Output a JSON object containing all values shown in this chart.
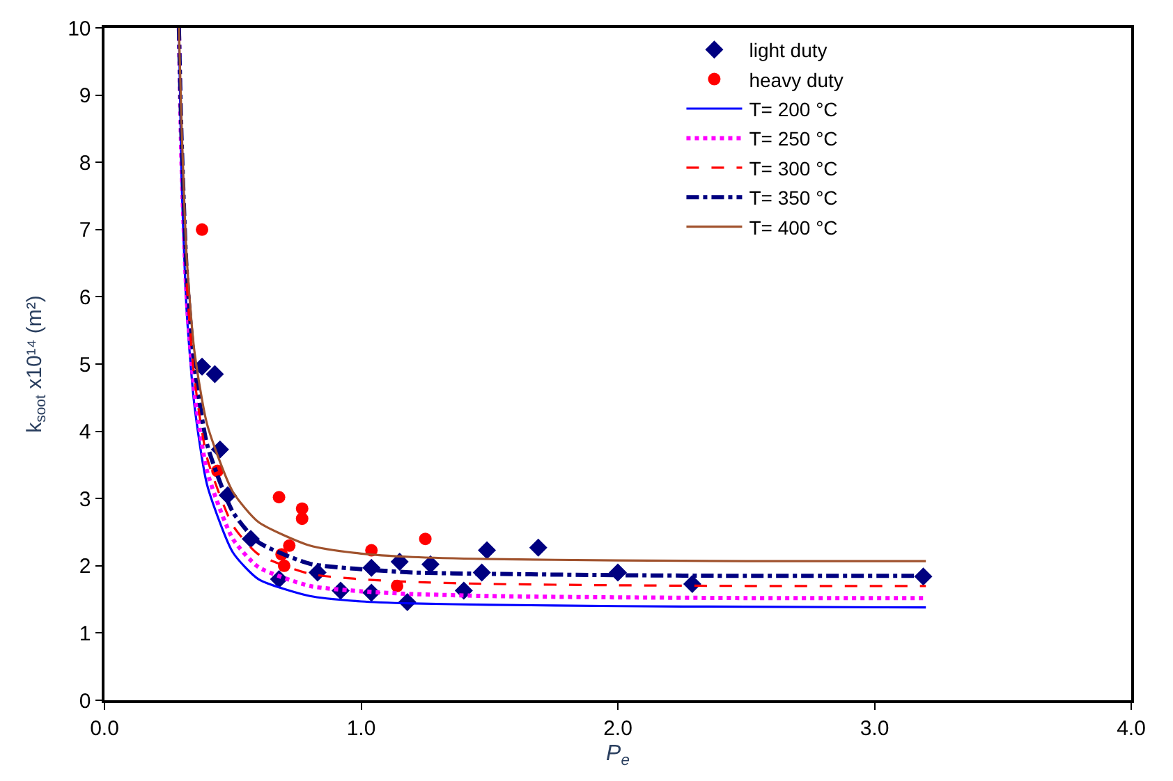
{
  "chart_data": {
    "type": "scatter",
    "xlabel": "P$_{e}$",
    "ylabel": "k$_{soot}$ x10¹⁴ (m²)",
    "xlim": [
      0,
      4
    ],
    "xticks": [
      {
        "value": 0,
        "label": "0.0"
      },
      {
        "value": 1,
        "label": "1.0"
      },
      {
        "value": 2,
        "label": "2.0"
      },
      {
        "value": 3,
        "label": "3.0"
      },
      {
        "value": 4,
        "label": "4.0"
      }
    ],
    "ylim": [
      0,
      10
    ],
    "yticks": [
      0,
      1,
      2,
      3,
      4,
      5,
      6,
      7,
      8,
      9,
      10
    ],
    "legend": "top right",
    "series": [
      {
        "name": "light duty",
        "marker": "diamond",
        "color": "#000080",
        "x": [
          0.38,
          0.43,
          0.45,
          0.48,
          0.57,
          0.68,
          0.83,
          0.92,
          1.04,
          1.04,
          1.15,
          1.18,
          1.27,
          1.4,
          1.47,
          1.49,
          1.69,
          2.0,
          2.29,
          3.19
        ],
        "values": [
          4.96,
          4.85,
          3.73,
          3.05,
          2.4,
          1.8,
          1.9,
          1.63,
          1.97,
          1.6,
          2.06,
          1.46,
          2.02,
          1.63,
          1.9,
          2.23,
          2.27,
          1.9,
          1.73,
          1.84
        ]
      },
      {
        "name": "heavy duty",
        "marker": "circle",
        "color": "#ff0000",
        "x": [
          0.38,
          0.44,
          0.68,
          0.77,
          0.77,
          0.72,
          0.69,
          0.7,
          1.04,
          1.14,
          1.25
        ],
        "values": [
          7.0,
          3.41,
          3.02,
          2.85,
          2.7,
          2.3,
          2.17,
          2.0,
          2.23,
          1.7,
          2.4
        ]
      },
      {
        "name": "T= 200 °C",
        "type": "line",
        "line_style": "solid",
        "color": "#0000ff",
        "x": [
          0.29,
          0.3,
          0.32,
          0.35,
          0.4,
          0.5,
          0.6,
          0.8,
          1.0,
          1.2,
          1.5,
          2.0,
          2.5,
          3.2
        ],
        "values": [
          10,
          7.8,
          5.8,
          4.4,
          3.2,
          2.2,
          1.8,
          1.55,
          1.47,
          1.44,
          1.42,
          1.4,
          1.39,
          1.38
        ]
      },
      {
        "name": "T= 250 °C",
        "type": "line",
        "line_style": "dotted",
        "color": "#ff00ff",
        "x": [
          0.29,
          0.3,
          0.32,
          0.35,
          0.4,
          0.5,
          0.6,
          0.8,
          1.0,
          1.2,
          1.5,
          2.0,
          2.5,
          3.2
        ],
        "values": [
          10,
          8.0,
          6.0,
          4.6,
          3.4,
          2.4,
          1.98,
          1.7,
          1.62,
          1.58,
          1.55,
          1.53,
          1.52,
          1.52
        ]
      },
      {
        "name": "T= 300 °C",
        "type": "line",
        "line_style": "dashed",
        "color": "#ff0000",
        "x": [
          0.32,
          0.35,
          0.4,
          0.5,
          0.6,
          0.8,
          1.0,
          1.2,
          1.5,
          2.0,
          2.5,
          3.2
        ],
        "values": [
          6.2,
          4.8,
          3.6,
          2.6,
          2.17,
          1.88,
          1.8,
          1.76,
          1.73,
          1.71,
          1.7,
          1.7
        ]
      },
      {
        "name": "T= 350 °C",
        "type": "line",
        "line_style": "dashdot",
        "color": "#000080",
        "x": [
          0.29,
          0.3,
          0.32,
          0.35,
          0.4,
          0.5,
          0.6,
          0.8,
          1.0,
          1.2,
          1.5,
          2.0,
          2.5,
          3.2
        ],
        "values": [
          10,
          8.4,
          6.4,
          5.0,
          3.8,
          2.8,
          2.35,
          2.03,
          1.95,
          1.9,
          1.88,
          1.86,
          1.85,
          1.85
        ]
      },
      {
        "name": "T= 400 °C",
        "type": "line",
        "line_style": "solid",
        "color": "#a0522d",
        "x": [
          0.29,
          0.3,
          0.32,
          0.35,
          0.4,
          0.5,
          0.6,
          0.8,
          1.0,
          1.2,
          1.5,
          2.0,
          2.5,
          3.2
        ],
        "values": [
          10,
          8.6,
          6.6,
          5.2,
          4.1,
          3.1,
          2.65,
          2.3,
          2.18,
          2.13,
          2.1,
          2.08,
          2.07,
          2.07
        ]
      }
    ]
  }
}
